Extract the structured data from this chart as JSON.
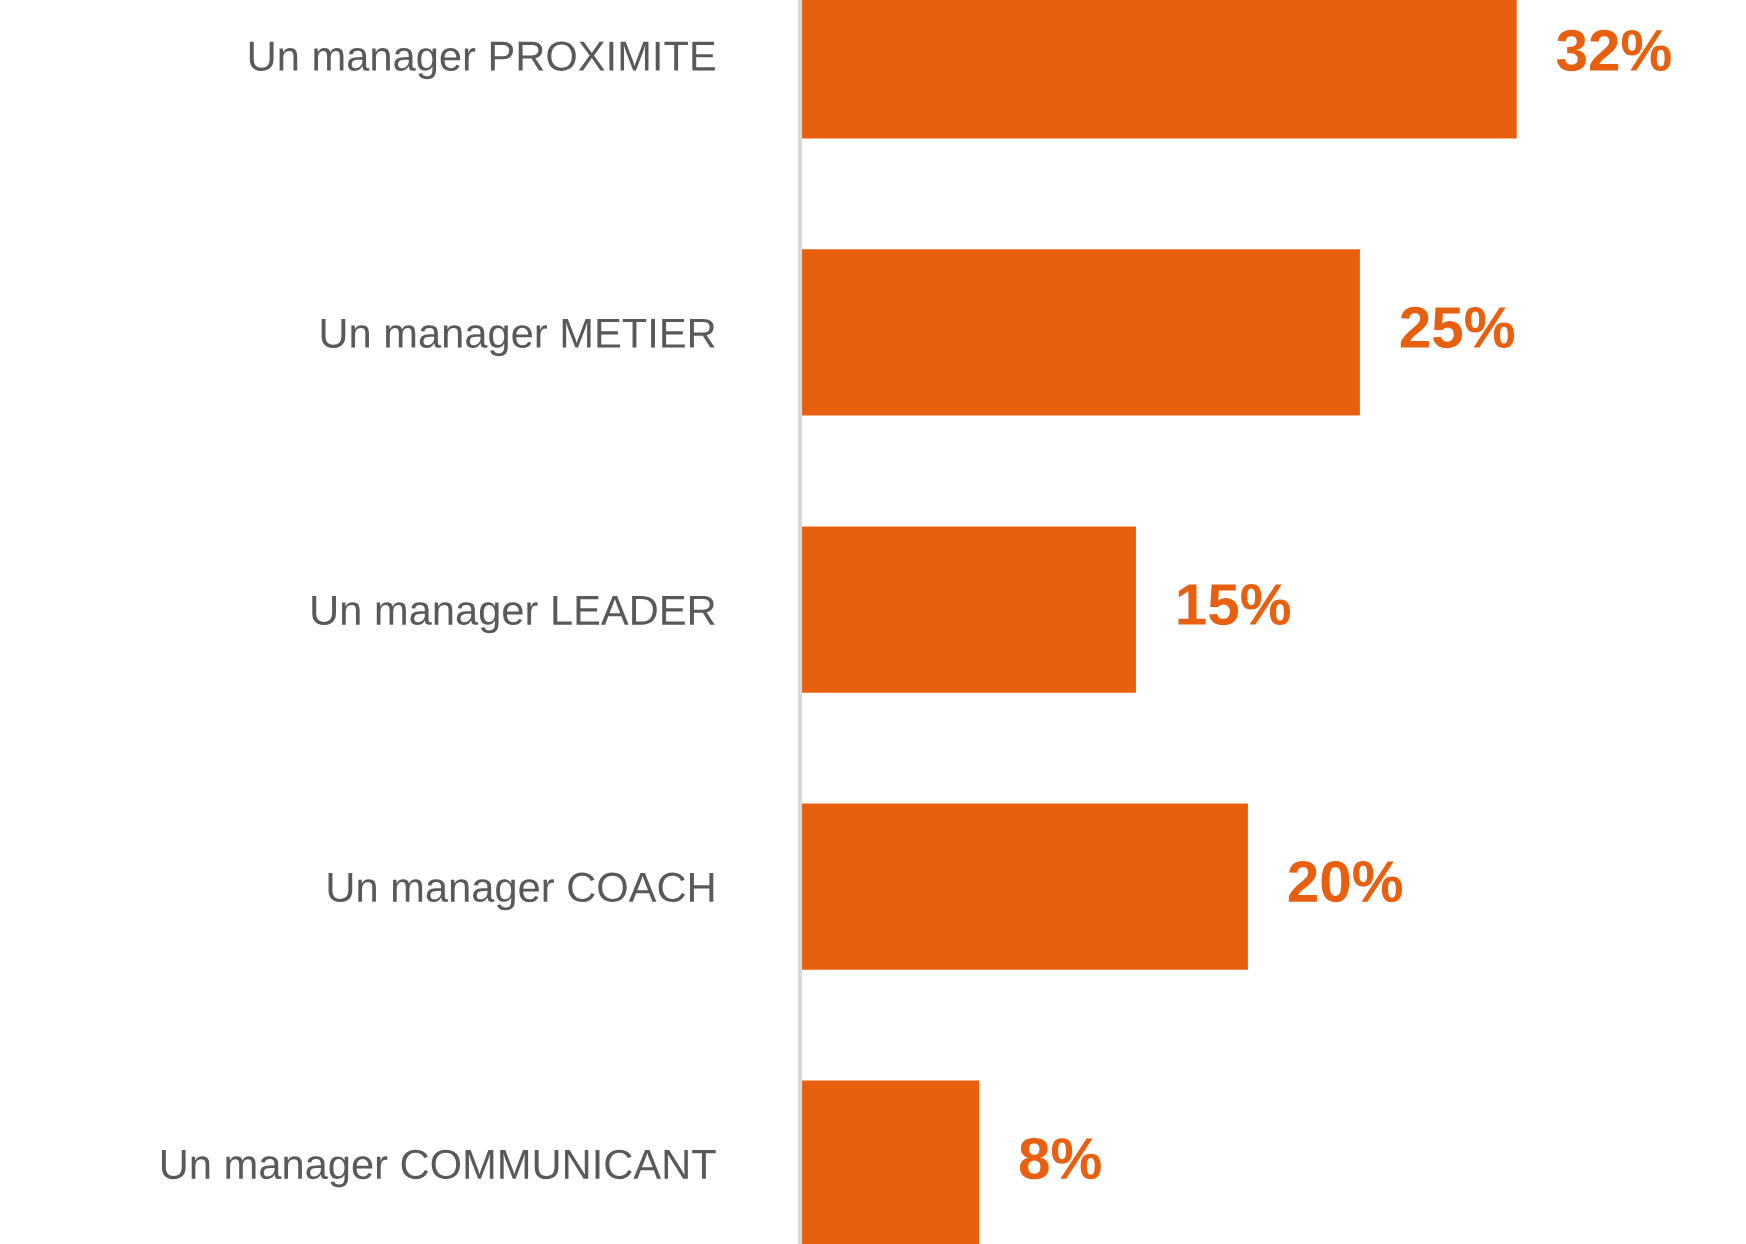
{
  "chart_data": {
    "type": "bar",
    "orientation": "horizontal",
    "categories": [
      "Un manager PROXIMITE",
      "Un manager METIER",
      "Un manager LEADER",
      "Un manager COACH",
      "Un manager COMMUNICANT"
    ],
    "values": [
      32,
      25,
      15,
      20,
      8
    ],
    "value_labels": [
      "32%",
      "25%",
      "15%",
      "20%",
      "8%"
    ],
    "color": "#e8600f",
    "grid": false,
    "legend": false
  }
}
